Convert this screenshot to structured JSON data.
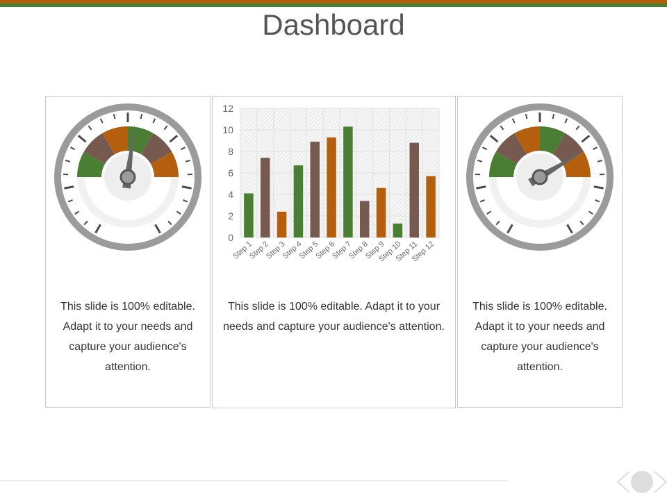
{
  "slide": {
    "title": "Dashboard"
  },
  "panels": [
    {
      "caption": "This slide is 100% editable. Adapt it to your needs and capture your audience's attention."
    },
    {
      "caption": "This slide is 100% editable. Adapt it to your needs and capture your audience's attention."
    },
    {
      "caption": "This slide is 100% editable. Adapt it to your needs and capture your audience's attention."
    }
  ],
  "colors": {
    "green": "#4A7F33",
    "brown": "#765A50",
    "orange": "#B35F0E",
    "rim": "#9B9B9B",
    "needle": "#666666"
  },
  "gauges": [
    {
      "value_fraction": 0.54,
      "segments": [
        "green",
        "brown",
        "orange",
        "green",
        "brown",
        "orange"
      ]
    },
    {
      "value_fraction": 0.83,
      "segments": [
        "green",
        "brown",
        "orange",
        "green",
        "brown",
        "orange"
      ]
    }
  ],
  "chart_data": {
    "type": "bar",
    "categories": [
      "Step 1",
      "Step 2",
      "Step 3",
      "Step 4",
      "Step 5",
      "Step 6",
      "Step 7",
      "Step 8",
      "Step 9",
      "Step 10",
      "Step 11",
      "Step 12"
    ],
    "values": [
      4.1,
      7.4,
      2.4,
      6.7,
      8.9,
      9.3,
      10.3,
      3.4,
      4.6,
      1.3,
      8.8,
      5.7
    ],
    "bar_colors": [
      "green",
      "brown",
      "orange",
      "green",
      "brown",
      "orange",
      "green",
      "brown",
      "orange",
      "green",
      "brown",
      "orange"
    ],
    "yticks": [
      "0",
      "2",
      "4",
      "6",
      "8",
      "10",
      "12"
    ],
    "ylim": [
      0,
      12
    ],
    "grid": true,
    "title": "",
    "xlabel": "",
    "ylabel": ""
  },
  "footer": {
    "nav_icon": "circle-nav-icon"
  }
}
